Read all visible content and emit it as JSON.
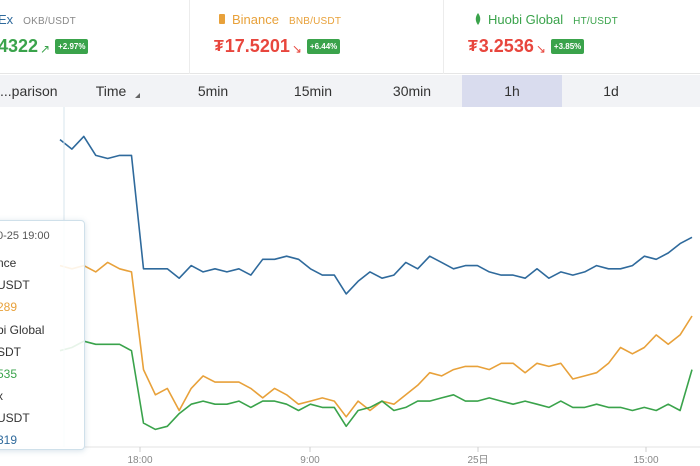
{
  "colors": {
    "okex": "#2f6a9c",
    "binance": "#e8a13a",
    "huobi": "#3aa34b",
    "down": "#e8463d",
    "badge": "#3aa34b",
    "active_tab": "#d9dcee"
  },
  "exchanges": [
    {
      "name": "Ex",
      "pair": "OKB/USDT",
      "currency": "",
      "price": "4322",
      "arrow": "↗",
      "change": "+2.97%",
      "icon": "okex-logo-icon"
    },
    {
      "name": "Binance",
      "pair": "BNB/USDT",
      "currency": "₮",
      "price": "17.5201",
      "arrow": "↘",
      "change": "+6.44%",
      "icon": "binance-logo-icon"
    },
    {
      "name": "Huobi Global",
      "pair": "HT/USDT",
      "currency": "₮",
      "price": "3.2536",
      "arrow": "↘",
      "change": "+3.85%",
      "icon": "huobi-logo-icon"
    }
  ],
  "tabs": [
    {
      "label": "...parison",
      "active": false
    },
    {
      "label": "Time",
      "active": false,
      "sort_icon": "sort-triangle-icon"
    },
    {
      "label": "5min",
      "active": false
    },
    {
      "label": "15min",
      "active": false
    },
    {
      "label": "30min",
      "active": false
    },
    {
      "label": "1h",
      "active": true
    },
    {
      "label": "1d",
      "active": false
    }
  ],
  "tooltip": {
    "time": "0-25 19:00",
    "rows": [
      {
        "name": "nce",
        "pair": "USDT",
        "value": "289"
      },
      {
        "name": "bi Global",
        "pair": "SDT",
        "value": "535"
      },
      {
        "name": "x",
        "pair": "USDT",
        "value": "319"
      }
    ]
  },
  "chart_data": {
    "type": "line",
    "x_ticks": [
      "18:00",
      "9:00",
      "25日",
      "15:00"
    ],
    "y_scale": "normalized comparison (values relative to chart height, 0 = bottom, 100 = top)",
    "series": [
      {
        "name": "OKEx",
        "color": "#2f6a9c",
        "values": [
          96,
          93,
          97,
          91,
          90,
          91,
          91,
          55,
          55,
          55,
          52,
          56,
          54,
          55,
          54,
          55,
          53,
          58,
          58,
          59,
          58,
          55,
          53,
          53,
          47,
          51,
          54,
          52,
          53,
          57,
          55,
          59,
          57,
          55,
          56,
          56,
          54,
          53,
          53,
          52,
          55,
          52,
          54,
          53,
          54,
          56,
          55,
          55,
          56,
          59,
          58,
          60,
          63,
          65
        ]
      },
      {
        "name": "Binance",
        "color": "#e8a13a",
        "values": [
          56,
          55,
          56,
          54,
          57,
          55,
          54,
          23,
          15,
          17,
          10,
          17,
          21,
          19,
          19,
          19,
          17,
          14,
          17,
          15,
          12,
          13,
          14,
          13,
          8,
          13,
          10,
          13,
          12,
          15,
          18,
          22,
          21,
          23,
          24,
          24,
          23,
          25,
          25,
          22,
          25,
          24,
          25,
          20,
          21,
          22,
          25,
          30,
          28,
          30,
          34,
          31,
          34,
          40
        ]
      },
      {
        "name": "Huobi Global",
        "color": "#3aa34b",
        "values": [
          29,
          30,
          32,
          31,
          31,
          31,
          29,
          6,
          4,
          5,
          9,
          12,
          13,
          12,
          12,
          13,
          11,
          13,
          13,
          12,
          10,
          12,
          11,
          11,
          5,
          10,
          11,
          13,
          10,
          11,
          13,
          13,
          14,
          15,
          13,
          13,
          14,
          13,
          12,
          13,
          12,
          11,
          13,
          11,
          11,
          12,
          11,
          11,
          10,
          11,
          10,
          12,
          10,
          23
        ]
      }
    ]
  }
}
